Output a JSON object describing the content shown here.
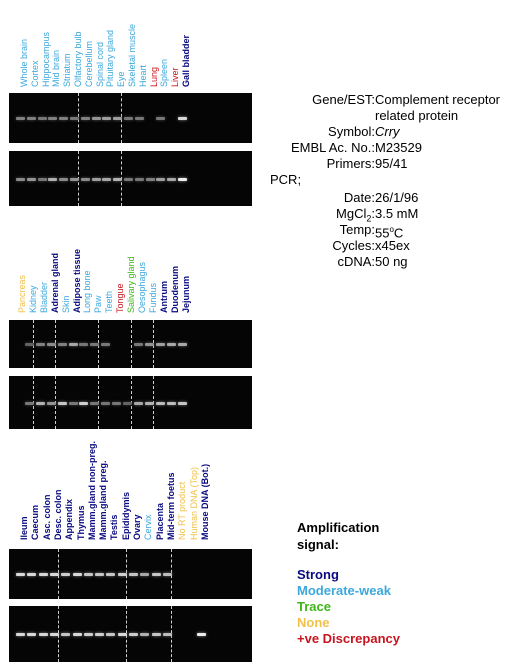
{
  "colors": {
    "strong": "#0a0a80",
    "moderate": "#3ca8dc",
    "trace": "#3fb618",
    "none": "#f2c14a",
    "discrepancy": "#c8141e",
    "gel_bg": "#050505",
    "band": "#e8e8e8"
  },
  "panels": [
    {
      "lanes": [
        {
          "label": "Whole brain",
          "color": "#3ca8dc",
          "level": 0.35
        },
        {
          "label": "Cortex",
          "color": "#3ca8dc",
          "level": 0.35
        },
        {
          "label": "Hippocampus",
          "color": "#3ca8dc",
          "level": 0.3
        },
        {
          "label": "Mid brain",
          "color": "#3ca8dc",
          "level": 0.35
        },
        {
          "label": "Striatum",
          "color": "#3ca8dc",
          "level": 0.35
        },
        {
          "label": "Olfactory bulb",
          "color": "#3ca8dc",
          "level": 0.3
        },
        {
          "label": "Cerebellum",
          "color": "#3ca8dc",
          "level": 0.35
        },
        {
          "label": "Spinal cord",
          "color": "#3ca8dc",
          "level": 0.45
        },
        {
          "label": "Pituitary gland",
          "color": "#3ca8dc",
          "level": 0.5
        },
        {
          "label": "Eye",
          "color": "#3ca8dc",
          "level": 0.5
        },
        {
          "label": "Skeletal muscle",
          "color": "#3ca8dc",
          "level": 0.3
        },
        {
          "label": "Heart",
          "color": "#3ca8dc",
          "level": 0.3
        },
        {
          "label": "Lung",
          "color": "#c8141e",
          "level": 0.0
        },
        {
          "label": "Spleen",
          "color": "#3ca8dc",
          "level": 0.3
        },
        {
          "label": "Liver",
          "color": "#c8141e",
          "level": 0.0
        },
        {
          "label": "Gall bladder",
          "color": "#0a0a80",
          "level": 0.8
        }
      ],
      "gel2_levels": [
        0.4,
        0.45,
        0.3,
        0.6,
        0.4,
        0.45,
        0.4,
        0.5,
        0.55,
        0.6,
        0.3,
        0.3,
        0.35,
        0.5,
        0.55,
        0.9
      ]
    },
    {
      "lanes": [
        {
          "label": "Pancreas",
          "color": "#f2c14a",
          "level": 0.0
        },
        {
          "label": "Kidney",
          "color": "#3ca8dc",
          "level": 0.2
        },
        {
          "label": "Bladder",
          "color": "#3ca8dc",
          "level": 0.35
        },
        {
          "label": "Adrenal gland",
          "color": "#0a0a80",
          "level": 0.4
        },
        {
          "label": "Skin",
          "color": "#3ca8dc",
          "level": 0.35
        },
        {
          "label": "Adipose tissue",
          "color": "#0a0a80",
          "level": 0.55
        },
        {
          "label": "Long bone",
          "color": "#3ca8dc",
          "level": 0.3
        },
        {
          "label": "Paw",
          "color": "#3ca8dc",
          "level": 0.3
        },
        {
          "label": "Teeth",
          "color": "#3ca8dc",
          "level": 0.3
        },
        {
          "label": "Tongue",
          "color": "#c8141e",
          "level": 0.0
        },
        {
          "label": "Salivary gland",
          "color": "#3fb618",
          "level": 0.0
        },
        {
          "label": "Oesophagus",
          "color": "#3ca8dc",
          "level": 0.3
        },
        {
          "label": "Fundus",
          "color": "#3ca8dc",
          "level": 0.45
        },
        {
          "label": "Antrum",
          "color": "#0a0a80",
          "level": 0.5
        },
        {
          "label": "Duodenum",
          "color": "#0a0a80",
          "level": 0.55
        },
        {
          "label": "Jejunum",
          "color": "#0a0a80",
          "level": 0.55
        }
      ],
      "gel2_levels": [
        0.0,
        0.3,
        0.6,
        0.45,
        0.7,
        0.3,
        0.75,
        0.3,
        0.3,
        0.3,
        0.2,
        0.55,
        0.6,
        0.65,
        0.65,
        0.7
      ]
    },
    {
      "lanes": [
        {
          "label": "Ileum",
          "color": "#0a0a80",
          "level": 0.8
        },
        {
          "label": "Caecum",
          "color": "#0a0a80",
          "level": 0.8
        },
        {
          "label": "Asc. colon",
          "color": "#0a0a80",
          "level": 0.8
        },
        {
          "label": "Desc. colon",
          "color": "#0a0a80",
          "level": 0.8
        },
        {
          "label": "Appendix",
          "color": "#0a0a80",
          "level": 0.75
        },
        {
          "label": "Thymus",
          "color": "#0a0a80",
          "level": 0.8
        },
        {
          "label": "Mamm.gland non-preg.",
          "color": "#0a0a80",
          "level": 0.7
        },
        {
          "label": "Mamm.gland preg.",
          "color": "#0a0a80",
          "level": 0.7
        },
        {
          "label": "Testis",
          "color": "#0a0a80",
          "level": 0.7
        },
        {
          "label": "Epididymis",
          "color": "#0a0a80",
          "level": 0.75
        },
        {
          "label": "Ovary",
          "color": "#0a0a80",
          "level": 0.7
        },
        {
          "label": "Cervix",
          "color": "#3ca8dc",
          "level": 0.55
        },
        {
          "label": "Placenta",
          "color": "#0a0a80",
          "level": 0.7
        },
        {
          "label": "Mid-term foetus",
          "color": "#0a0a80",
          "level": 0.65
        },
        {
          "label": "No RT product",
          "color": "#f2c14a",
          "level": 0.0
        },
        {
          "label": "Human DNA (Top)",
          "color": "#f2c14a",
          "level": 0.0
        },
        {
          "label": "Mouse DNA (Bot.)",
          "color": "#0a0a80",
          "level": 0.0
        }
      ],
      "gel2_levels": [
        0.8,
        0.8,
        0.8,
        0.8,
        0.7,
        0.8,
        0.75,
        0.75,
        0.7,
        0.8,
        0.75,
        0.6,
        0.7,
        0.65,
        0.0,
        0.0,
        0.9
      ]
    }
  ],
  "info": {
    "rows": [
      {
        "key": "Gene/EST:",
        "value": "Complement receptor"
      },
      {
        "key": "",
        "value": "related protein"
      },
      {
        "key": "Symbol:",
        "value": "Crry"
      },
      {
        "key": "EMBL Ac. No.:",
        "value": "M23529"
      },
      {
        "key": "Primers:",
        "value": "95/41"
      },
      {
        "key": "PCR;",
        "value": ""
      },
      {
        "key": "Date:",
        "value": "26/1/96"
      },
      {
        "key": "MgCl",
        "value": "3.5 mM"
      },
      {
        "key": "Temp:",
        "value": "55oC"
      },
      {
        "key": "Cycles:",
        "value": "x45ex"
      },
      {
        "key": "cDNA:",
        "value": "50 ng"
      }
    ],
    "mgcl_sub": "2",
    "mgcl_colon": ":",
    "temp_prefix": "55",
    "temp_sup": "o",
    "temp_suffix": "C"
  },
  "legend": {
    "title_line1": "Amplification",
    "title_line2": "signal:",
    "items": [
      {
        "label": "Strong",
        "color": "#0a0a80"
      },
      {
        "label": "Moderate-weak",
        "color": "#3ca8dc"
      },
      {
        "label": "Trace",
        "color": "#3fb618"
      },
      {
        "label": "None",
        "color": "#f2c14a"
      },
      {
        "label": "+ve Discrepancy",
        "color": "#c8141e"
      }
    ]
  }
}
